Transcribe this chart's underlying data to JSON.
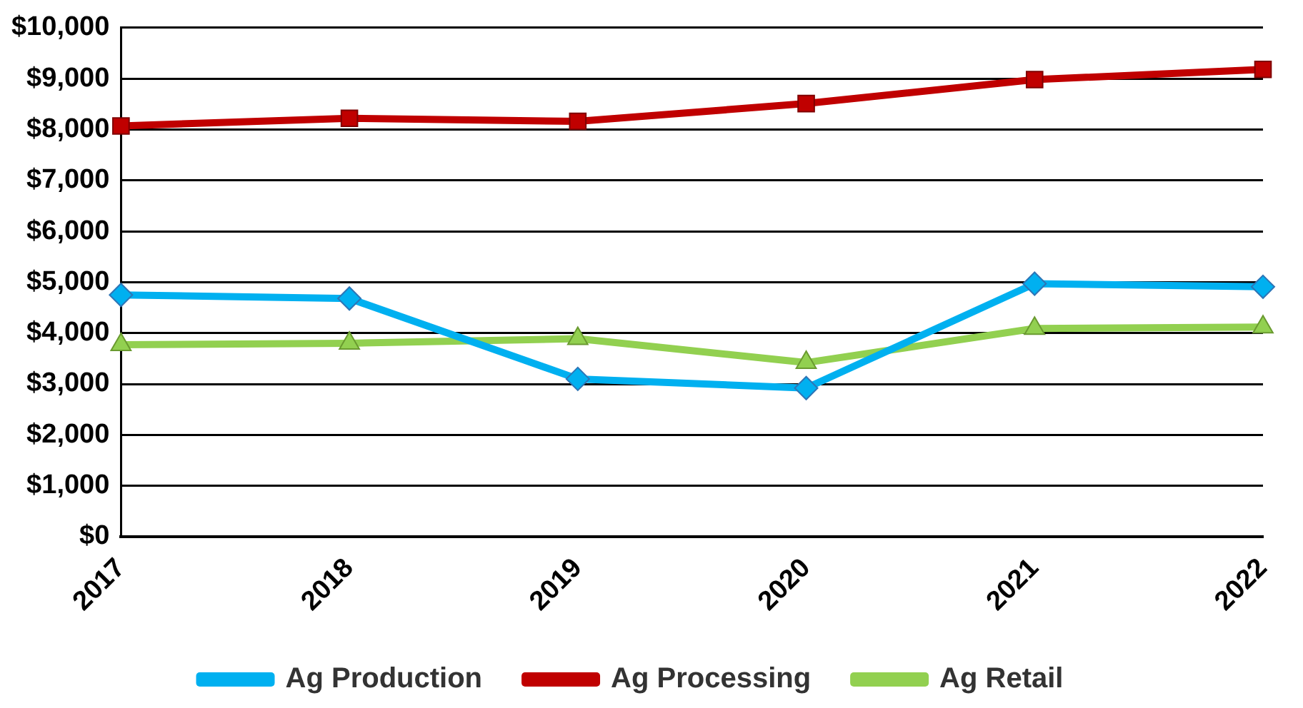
{
  "chart_data": {
    "type": "line",
    "categories": [
      "2017",
      "2018",
      "2019",
      "2020",
      "2021",
      "2022"
    ],
    "series": [
      {
        "name": "Ag Production",
        "color": "#00b0f0",
        "marker": "diamond",
        "values": [
          4750,
          4680,
          3100,
          2920,
          4970,
          4910
        ]
      },
      {
        "name": "Ag Processing",
        "color": "#c00000",
        "marker": "square",
        "values": [
          8070,
          8220,
          8160,
          8510,
          8980,
          9180
        ]
      },
      {
        "name": "Ag Retail",
        "color": "#92d050",
        "marker": "triangle",
        "values": [
          3770,
          3800,
          3890,
          3420,
          4090,
          4120
        ]
      }
    ],
    "ylim": [
      0,
      10000
    ],
    "yticks": [
      {
        "value": 0,
        "label": "$0"
      },
      {
        "value": 1000,
        "label": "$1,000"
      },
      {
        "value": 2000,
        "label": "$2,000"
      },
      {
        "value": 3000,
        "label": "$3,000"
      },
      {
        "value": 4000,
        "label": "$4,000"
      },
      {
        "value": 5000,
        "label": "$5,000"
      },
      {
        "value": 6000,
        "label": "$6,000"
      },
      {
        "value": 7000,
        "label": "$7,000"
      },
      {
        "value": 8000,
        "label": "$8,000"
      },
      {
        "value": 9000,
        "label": "$9,000"
      },
      {
        "value": 10000,
        "label": "$10,000"
      }
    ],
    "grid": "y",
    "legend": "bottom"
  }
}
